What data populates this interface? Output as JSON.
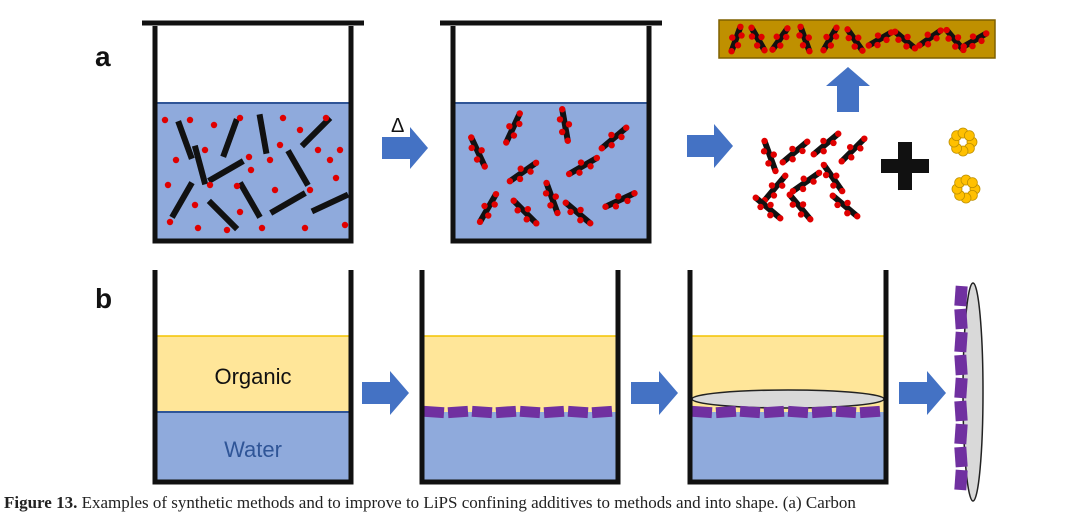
{
  "panels": {
    "a": {
      "label": "a",
      "heat_symbol": "Δ"
    },
    "b": {
      "label": "b",
      "organic_label": "Organic",
      "water_label": "Water"
    }
  },
  "caption": {
    "figure_label": "Figure 13.",
    "text": "Examples of synthetic methods and to improve to LiPS confining additives to methods and into shape. (a) Carbon"
  },
  "colors": {
    "water": "#8faadc",
    "organic": "#ffe699",
    "arrow": "#4472c4",
    "particle": "#e00000",
    "rod": "#111111",
    "film": "#bf9000",
    "sphere": "#ffc000",
    "molecule": "#7030a0",
    "substrate": "#d9d9d9"
  }
}
